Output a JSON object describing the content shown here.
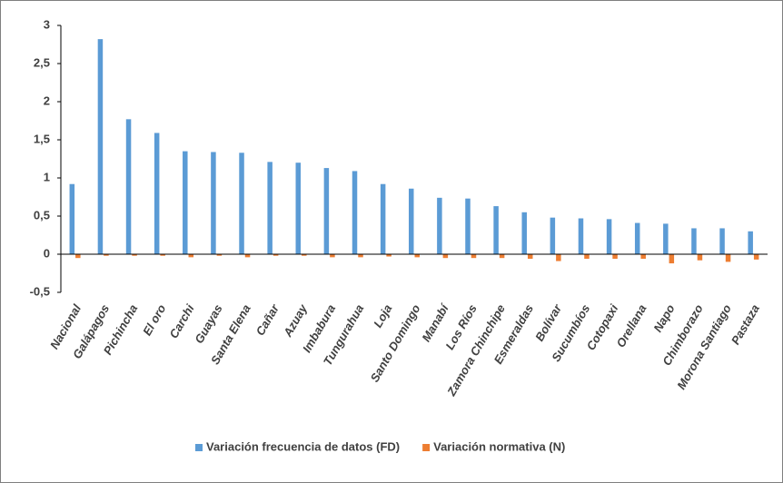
{
  "chart_data": {
    "type": "bar",
    "categories": [
      "Nacional",
      "Galápagos",
      "Pichincha",
      "El oro",
      "Carchi",
      "Guayas",
      "Santa Elena",
      "Cañar",
      "Azuay",
      "Imbabura",
      "Tungurahua",
      "Loja",
      "Santo Domingo",
      "Manabí",
      "Los Ríos",
      "Zamora Chinchipe",
      "Esmeraldas",
      "Bolívar",
      "Sucumbíos",
      "Cotopaxi",
      "Orellana",
      "Napo",
      "Chimborazo",
      "Morona Santiago",
      "Pastaza"
    ],
    "series": [
      {
        "name": "Variación frecuencia de datos (FD)",
        "color": "#5b9bd5",
        "values": [
          0.92,
          2.82,
          1.77,
          1.59,
          1.35,
          1.34,
          1.33,
          1.21,
          1.2,
          1.13,
          1.09,
          0.92,
          0.86,
          0.74,
          0.73,
          0.63,
          0.55,
          0.48,
          0.47,
          0.46,
          0.41,
          0.4,
          0.34,
          0.34,
          0.3
        ]
      },
      {
        "name": "Variación normativa (N)",
        "color": "#ed7d31",
        "values": [
          -0.05,
          -0.02,
          -0.02,
          -0.02,
          -0.04,
          -0.02,
          -0.04,
          -0.02,
          -0.02,
          -0.04,
          -0.04,
          -0.03,
          -0.04,
          -0.05,
          -0.05,
          -0.05,
          -0.06,
          -0.09,
          -0.06,
          -0.06,
          -0.06,
          -0.12,
          -0.08,
          -0.1,
          -0.07
        ]
      }
    ],
    "ylim": [
      -0.5,
      3
    ],
    "yticks": [
      {
        "value": -0.5,
        "label": "-0,5"
      },
      0,
      {
        "value": 0.5,
        "label": "0,5"
      },
      1,
      {
        "value": 1.5,
        "label": "1,5"
      },
      2,
      {
        "value": 2.5,
        "label": "2,5"
      },
      3
    ],
    "grid": false,
    "legend": "bottom"
  }
}
